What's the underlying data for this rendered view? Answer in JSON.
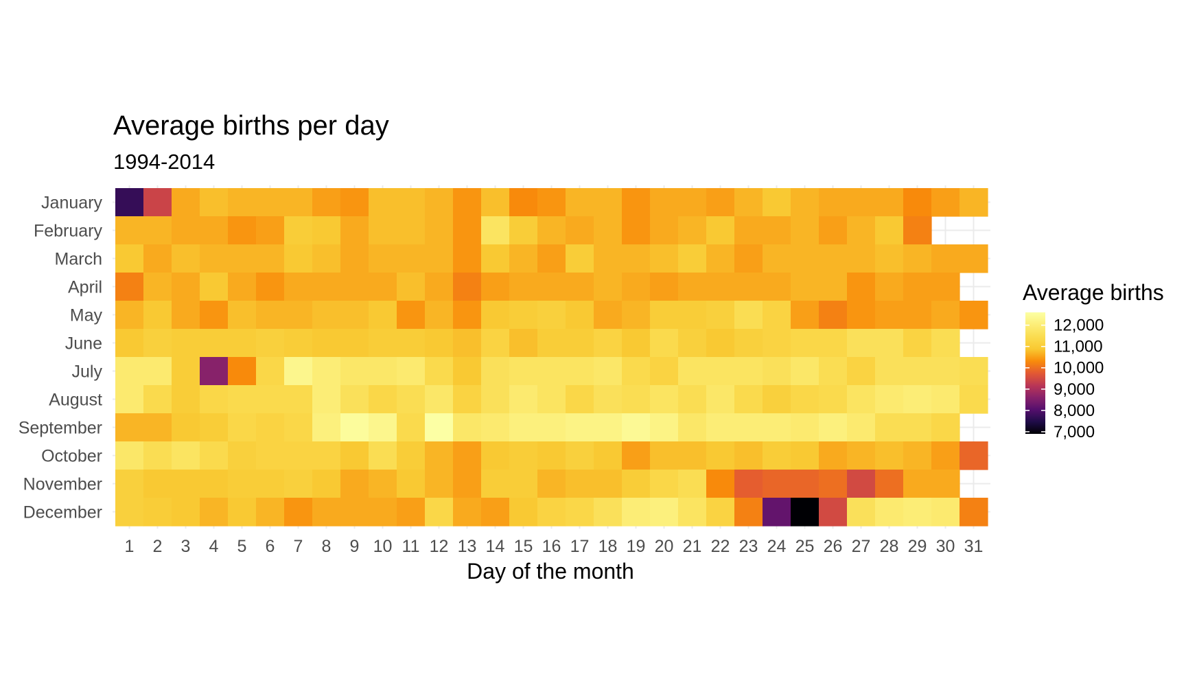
{
  "chart_data": {
    "type": "heatmap",
    "title": "Average births per day",
    "subtitle": "1994-2014",
    "xlabel": "Day of the month",
    "ylabel": "",
    "days": [
      1,
      2,
      3,
      4,
      5,
      6,
      7,
      8,
      9,
      10,
      11,
      12,
      13,
      14,
      15,
      16,
      17,
      18,
      19,
      20,
      21,
      22,
      23,
      24,
      25,
      26,
      27,
      28,
      29,
      30,
      31
    ],
    "months": [
      "January",
      "February",
      "March",
      "April",
      "May",
      "June",
      "July",
      "August",
      "September",
      "October",
      "November",
      "December"
    ],
    "values": [
      [
        7700,
        9400,
        10600,
        10800,
        10700,
        10700,
        10700,
        10500,
        10400,
        10800,
        10800,
        10700,
        10400,
        10800,
        10300,
        10400,
        10700,
        10700,
        10400,
        10600,
        10600,
        10500,
        10700,
        10900,
        10700,
        10600,
        10600,
        10600,
        10300,
        10500,
        10700
      ],
      [
        10700,
        10700,
        10600,
        10600,
        10400,
        10500,
        11000,
        10900,
        10600,
        10800,
        10800,
        10700,
        10400,
        11700,
        11000,
        10700,
        10600,
        10700,
        10400,
        10600,
        10700,
        10900,
        10600,
        10600,
        10700,
        10500,
        10700,
        10900,
        10200,
        null,
        null
      ],
      [
        10900,
        10600,
        10800,
        10700,
        10700,
        10700,
        10900,
        10800,
        10600,
        10700,
        10700,
        10700,
        10400,
        10900,
        10700,
        10500,
        11000,
        10700,
        10700,
        10800,
        11000,
        10700,
        10500,
        10700,
        10700,
        10700,
        10700,
        10800,
        10700,
        10600,
        10600
      ],
      [
        10200,
        10700,
        10600,
        10900,
        10600,
        10400,
        10600,
        10600,
        10600,
        10600,
        10800,
        10600,
        10200,
        10500,
        10600,
        10600,
        10600,
        10700,
        10600,
        10500,
        10600,
        10600,
        10600,
        10600,
        10700,
        10700,
        10400,
        10600,
        10500,
        10500,
        null
      ],
      [
        10700,
        10900,
        10600,
        10400,
        10800,
        10700,
        10700,
        10800,
        10800,
        10900,
        10400,
        10700,
        10400,
        10900,
        11000,
        11100,
        10900,
        10600,
        10700,
        11000,
        11000,
        11100,
        11500,
        11200,
        10500,
        10200,
        10400,
        10500,
        10500,
        10600,
        10400
      ],
      [
        10900,
        11100,
        11000,
        11000,
        11000,
        11100,
        11000,
        10900,
        10900,
        11000,
        11000,
        10900,
        10800,
        11200,
        10800,
        11000,
        11000,
        11200,
        10900,
        11400,
        11100,
        10900,
        11100,
        11200,
        11300,
        11300,
        11600,
        11600,
        11200,
        11500,
        null
      ],
      [
        11900,
        11900,
        11000,
        8600,
        10300,
        11300,
        12300,
        12000,
        11800,
        11800,
        11900,
        11400,
        10900,
        11600,
        11700,
        11700,
        11700,
        11800,
        11400,
        11200,
        11700,
        11700,
        11700,
        11600,
        11800,
        11500,
        11200,
        11600,
        11600,
        11600,
        11500
      ],
      [
        11900,
        11400,
        11000,
        11300,
        11400,
        11400,
        11400,
        12000,
        11600,
        11300,
        11500,
        11800,
        11200,
        11600,
        11900,
        11700,
        11300,
        11600,
        11500,
        11700,
        11500,
        11800,
        11400,
        11100,
        11300,
        11400,
        11700,
        11900,
        12000,
        11900,
        11400
      ],
      [
        10700,
        10700,
        10900,
        11000,
        11300,
        11200,
        11300,
        12100,
        12500,
        12300,
        11400,
        12600,
        11800,
        11900,
        12100,
        12100,
        12200,
        12200,
        12400,
        12200,
        11800,
        12000,
        12000,
        12000,
        11900,
        12100,
        11900,
        11500,
        11500,
        11300,
        null
      ],
      [
        11800,
        11500,
        11700,
        11400,
        11100,
        11200,
        11200,
        11200,
        10900,
        11500,
        11000,
        10700,
        10500,
        10900,
        11000,
        10900,
        11100,
        10900,
        10500,
        10800,
        10800,
        10900,
        10800,
        11000,
        10900,
        10600,
        10700,
        10800,
        10700,
        10500,
        9900
      ],
      [
        11100,
        10900,
        10900,
        10900,
        11000,
        11000,
        11100,
        10900,
        10600,
        10700,
        10900,
        10700,
        10500,
        11000,
        11000,
        10700,
        10800,
        10800,
        11000,
        11300,
        11500,
        10300,
        9800,
        9900,
        9900,
        10000,
        9500,
        10000,
        10600,
        10600,
        null
      ],
      [
        11100,
        11000,
        10900,
        10700,
        10900,
        10700,
        10400,
        10600,
        10600,
        10600,
        10500,
        11300,
        10600,
        10500,
        10900,
        11200,
        11300,
        11600,
        12000,
        12100,
        11700,
        11200,
        10200,
        8200,
        6900,
        9500,
        11600,
        11900,
        12000,
        11900,
        10200
      ]
    ],
    "legend": {
      "title": "Average births",
      "ticks": [
        12000,
        11000,
        10000,
        9000,
        8000,
        7000
      ],
      "tick_labels": [
        "12,000",
        "11,000",
        "10,000",
        "9,000",
        "8,000",
        "7,000"
      ],
      "range": [
        6900,
        12600
      ],
      "position": "right"
    },
    "colorscale": "inferno",
    "grid": true
  }
}
